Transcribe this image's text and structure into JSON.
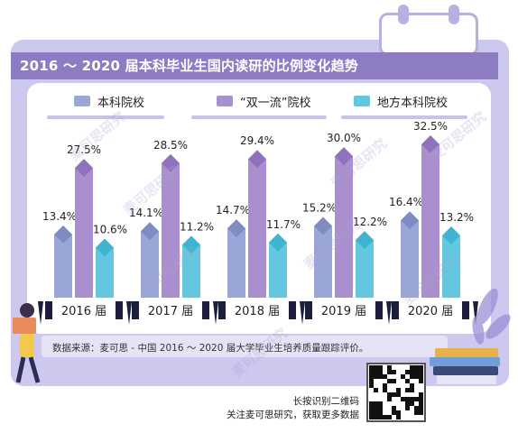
{
  "title": "2016 ～ 2020 届本科毕业生国内读研的比例变化趋势",
  "source": "数据来源：麦可思 - 中国 2016 ～ 2020 届大学毕业生培养质量跟踪评价。",
  "qr_caption": {
    "line1": "长按识别二维码",
    "line2": "关注麦可思研究，获取更多数据"
  },
  "watermark": "麦可思研究",
  "colors": {
    "series1": "#9aa6d6",
    "series2": "#a98fce",
    "series3": "#63c8df",
    "title_band": "#8e7cc3",
    "card": "#ccc8ee",
    "year_label_bg": "#1b1f3b"
  },
  "chart_data": {
    "type": "bar",
    "title": "2016 ～ 2020 届本科毕业生国内读研的比例变化趋势",
    "categories": [
      "2016 届",
      "2017 届",
      "2018 届",
      "2019 届",
      "2020 届"
    ],
    "series": [
      {
        "name": "本科院校",
        "values": [
          13.4,
          14.1,
          14.7,
          15.2,
          16.4
        ],
        "labels": [
          "13.4%",
          "14.1%",
          "14.7%",
          "15.2%",
          "16.4%"
        ]
      },
      {
        "name": "“双一流”院校",
        "values": [
          27.5,
          28.5,
          29.4,
          30.0,
          32.5
        ],
        "labels": [
          "27.5%",
          "28.5%",
          "29.4%",
          "30.0%",
          "32.5%"
        ]
      },
      {
        "name": "地方本科院校",
        "values": [
          10.6,
          11.2,
          11.7,
          12.2,
          13.2
        ],
        "labels": [
          "10.6%",
          "11.2%",
          "11.7%",
          "12.2%",
          "13.2%"
        ]
      }
    ],
    "unit": "%",
    "ylim": [
      0,
      35
    ],
    "legend_position": "top",
    "grid": false
  }
}
